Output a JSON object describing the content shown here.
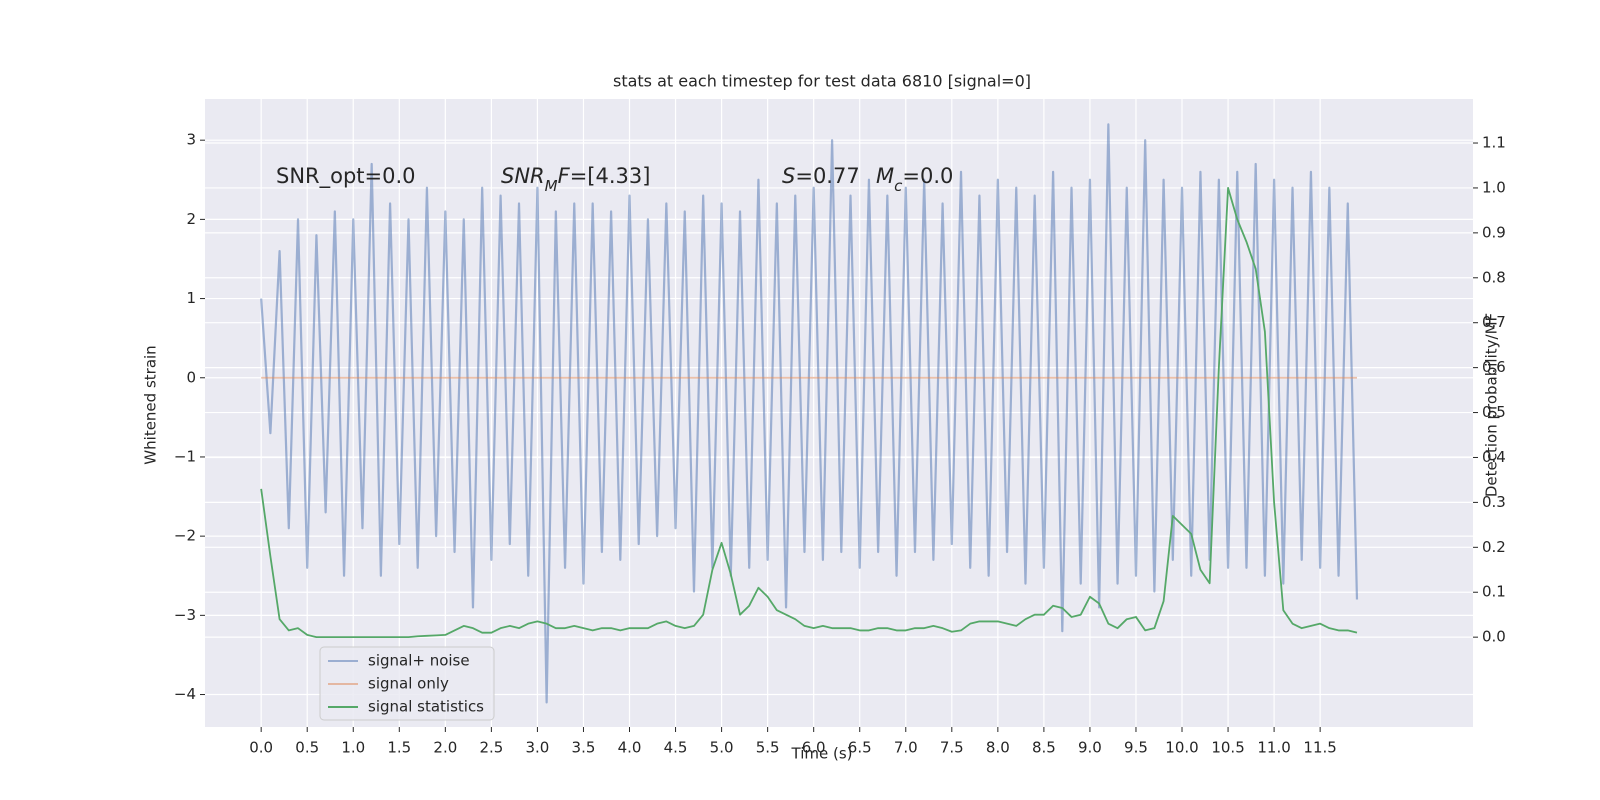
{
  "chart_data": {
    "type": "line",
    "title": "stats at each timestep for test data 6810 [signal=0]",
    "xlabel": "Time (s)",
    "ylabel": "Whitened strain",
    "y2label": "Detection probability/MF",
    "annotations": [
      {
        "parts": [
          {
            "text": "SNR_opt=0.0"
          }
        ]
      },
      {
        "parts": [
          {
            "text": "SNR",
            "style": "italic"
          },
          {
            "text": "M",
            "style": "sub"
          },
          {
            "text": "F",
            "style": "italic"
          },
          {
            "text": "=[4.33]"
          }
        ]
      },
      {
        "parts": [
          {
            "text": "S",
            "style": "italic"
          },
          {
            "text": "=0.77"
          }
        ]
      },
      {
        "parts": [
          {
            "text": "M",
            "style": "italic"
          },
          {
            "text": "c",
            "style": "sub"
          },
          {
            "text": "=0.0"
          }
        ]
      }
    ],
    "x": [
      0,
      0.1,
      0.2,
      0.3,
      0.4,
      0.5,
      0.6,
      0.7,
      0.8,
      0.9,
      1,
      1.1,
      1.2,
      1.3,
      1.4,
      1.5,
      1.6,
      1.7,
      1.8,
      1.9,
      2,
      2.1,
      2.2,
      2.3,
      2.4,
      2.5,
      2.6,
      2.7,
      2.8,
      2.9,
      3,
      3.1,
      3.2,
      3.3,
      3.4,
      3.5,
      3.6,
      3.7,
      3.8,
      3.9,
      4,
      4.1,
      4.2,
      4.3,
      4.4,
      4.5,
      4.6,
      4.7,
      4.8,
      4.9,
      5,
      5.1,
      5.2,
      5.3,
      5.4,
      5.5,
      5.6,
      5.7,
      5.8,
      5.9,
      6,
      6.1,
      6.2,
      6.3,
      6.4,
      6.5,
      6.6,
      6.7,
      6.8,
      6.9,
      7,
      7.1,
      7.2,
      7.3,
      7.4,
      7.5,
      7.6,
      7.7,
      7.8,
      7.9,
      8,
      8.1,
      8.2,
      8.3,
      8.4,
      8.5,
      8.6,
      8.7,
      8.8,
      8.9,
      9,
      9.1,
      9.2,
      9.3,
      9.4,
      9.5,
      9.6,
      9.7,
      9.8,
      9.9,
      10,
      10.1,
      10.2,
      10.3,
      10.4,
      10.5,
      10.6,
      10.7,
      10.8,
      10.9,
      11,
      11.1,
      11.2,
      11.3,
      11.4,
      11.5,
      11.6,
      11.7,
      11.8,
      11.9
    ],
    "series": [
      {
        "name": "signal+ noise",
        "color": "#4c72b0",
        "opacity": 0.5,
        "axis": "y",
        "values": [
          1.0,
          -0.7,
          1.6,
          -1.9,
          2.0,
          -2.4,
          1.8,
          -1.7,
          2.1,
          -2.5,
          2.0,
          -1.9,
          2.7,
          -2.5,
          2.2,
          -2.1,
          2.0,
          -2.4,
          2.4,
          -2.0,
          2.1,
          -2.2,
          2.0,
          -2.9,
          2.4,
          -2.3,
          2.3,
          -2.1,
          2.2,
          -2.5,
          2.4,
          -4.1,
          2.1,
          -2.4,
          2.2,
          -2.6,
          2.2,
          -2.2,
          2.1,
          -2.3,
          2.3,
          -2.1,
          2.0,
          -2.0,
          2.2,
          -1.9,
          2.1,
          -2.7,
          2.3,
          -2.4,
          2.2,
          -2.5,
          2.1,
          -2.4,
          2.5,
          -2.3,
          2.2,
          -2.9,
          2.3,
          -2.2,
          2.4,
          -2.3,
          3.0,
          -2.2,
          2.3,
          -2.4,
          2.5,
          -2.2,
          2.3,
          -2.5,
          2.4,
          -2.2,
          2.5,
          -2.3,
          2.2,
          -2.1,
          2.6,
          -2.4,
          2.3,
          -2.5,
          2.5,
          -2.2,
          2.4,
          -2.6,
          2.3,
          -2.4,
          2.6,
          -3.2,
          2.4,
          -2.6,
          2.5,
          -2.9,
          3.2,
          -2.6,
          2.4,
          -2.5,
          3.0,
          -2.7,
          2.5,
          -2.3,
          2.4,
          -2.5,
          2.6,
          -2.3,
          2.5,
          -2.4,
          2.6,
          -2.4,
          2.7,
          -2.5,
          2.5,
          -2.6,
          2.4,
          -2.3,
          2.6,
          -2.4,
          2.4,
          -2.5,
          2.2,
          -2.8
        ]
      },
      {
        "name": "signal only",
        "color": "#dd8452",
        "opacity": 0.5,
        "axis": "y",
        "values": [
          0,
          0,
          0,
          0,
          0,
          0,
          0,
          0,
          0,
          0,
          0,
          0,
          0,
          0,
          0,
          0,
          0,
          0,
          0,
          0,
          0,
          0,
          0,
          0,
          0,
          0,
          0,
          0,
          0,
          0,
          0,
          0,
          0,
          0,
          0,
          0,
          0,
          0,
          0,
          0,
          0,
          0,
          0,
          0,
          0,
          0,
          0,
          0,
          0,
          0,
          0,
          0,
          0,
          0,
          0,
          0,
          0,
          0,
          0,
          0,
          0,
          0,
          0,
          0,
          0,
          0,
          0,
          0,
          0,
          0,
          0,
          0,
          0,
          0,
          0,
          0,
          0,
          0,
          0,
          0,
          0,
          0,
          0,
          0,
          0,
          0,
          0,
          0,
          0,
          0,
          0,
          0,
          0,
          0,
          0,
          0,
          0,
          0,
          0,
          0,
          0,
          0,
          0,
          0,
          0,
          0,
          0,
          0,
          0,
          0,
          0,
          0,
          0,
          0,
          0,
          0,
          0,
          0,
          0,
          0
        ]
      },
      {
        "name": "signal statistics",
        "color": "#55a868",
        "opacity": 1,
        "axis": "y2",
        "values": [
          0.33,
          0.18,
          0.04,
          0.015,
          0.02,
          0.005,
          0.0,
          0.0,
          0.0,
          0.0,
          0.0,
          0.0,
          0.0,
          0.0,
          0.0,
          0.0,
          0.0,
          0.002,
          0.003,
          0.004,
          0.005,
          0.015,
          0.025,
          0.02,
          0.01,
          0.01,
          0.02,
          0.025,
          0.02,
          0.03,
          0.035,
          0.03,
          0.02,
          0.02,
          0.025,
          0.02,
          0.015,
          0.02,
          0.02,
          0.015,
          0.02,
          0.02,
          0.02,
          0.03,
          0.035,
          0.025,
          0.02,
          0.025,
          0.05,
          0.15,
          0.21,
          0.14,
          0.05,
          0.07,
          0.11,
          0.09,
          0.06,
          0.05,
          0.04,
          0.025,
          0.02,
          0.025,
          0.02,
          0.02,
          0.02,
          0.015,
          0.015,
          0.02,
          0.02,
          0.015,
          0.015,
          0.02,
          0.02,
          0.025,
          0.02,
          0.012,
          0.015,
          0.03,
          0.035,
          0.035,
          0.035,
          0.03,
          0.025,
          0.04,
          0.05,
          0.05,
          0.07,
          0.065,
          0.045,
          0.05,
          0.09,
          0.075,
          0.03,
          0.02,
          0.04,
          0.045,
          0.015,
          0.02,
          0.08,
          0.27,
          0.25,
          0.23,
          0.15,
          0.12,
          0.6,
          1.0,
          0.93,
          0.88,
          0.82,
          0.68,
          0.3,
          0.06,
          0.03,
          0.02,
          0.025,
          0.03,
          0.02,
          0.015,
          0.015,
          0.01
        ]
      }
    ],
    "xlim": [
      -0.61,
      13.16
    ],
    "xticks": [
      {
        "value": 0,
        "label": "0.0"
      },
      0.5,
      {
        "value": 1,
        "label": "1.0"
      },
      1.5,
      {
        "value": 2,
        "label": "2.0"
      },
      2.5,
      {
        "value": 3,
        "label": "3.0"
      },
      3.5,
      {
        "value": 4,
        "label": "4.0"
      },
      4.5,
      {
        "value": 5,
        "label": "5.0"
      },
      5.5,
      {
        "value": 6,
        "label": "6.0"
      },
      6.5,
      {
        "value": 7,
        "label": "7.0"
      },
      7.5,
      {
        "value": 8,
        "label": "8.0"
      },
      8.5,
      {
        "value": 9,
        "label": "9.0"
      },
      9.5,
      {
        "value": 10,
        "label": "10.0"
      },
      10.5,
      {
        "value": 11,
        "label": "11.0"
      },
      11.5
    ],
    "ylim": [
      -4.41,
      3.52
    ],
    "yticks": [
      {
        "value": -4,
        "label": "−4"
      },
      {
        "value": -3,
        "label": "−3"
      },
      {
        "value": -2,
        "label": "−2"
      },
      {
        "value": -1,
        "label": "−1"
      },
      0,
      1,
      2,
      3
    ],
    "y2lim": [
      -0.2,
      1.198
    ],
    "y2ticks": [
      {
        "value": 0,
        "label": "0.0"
      },
      0.1,
      0.2,
      0.3,
      0.4,
      0.5,
      0.6,
      0.7,
      0.8,
      0.9,
      {
        "value": 1,
        "label": "1.0"
      },
      1.1
    ],
    "grid": true,
    "legend": "lower left",
    "background": "#eaeaf2"
  }
}
